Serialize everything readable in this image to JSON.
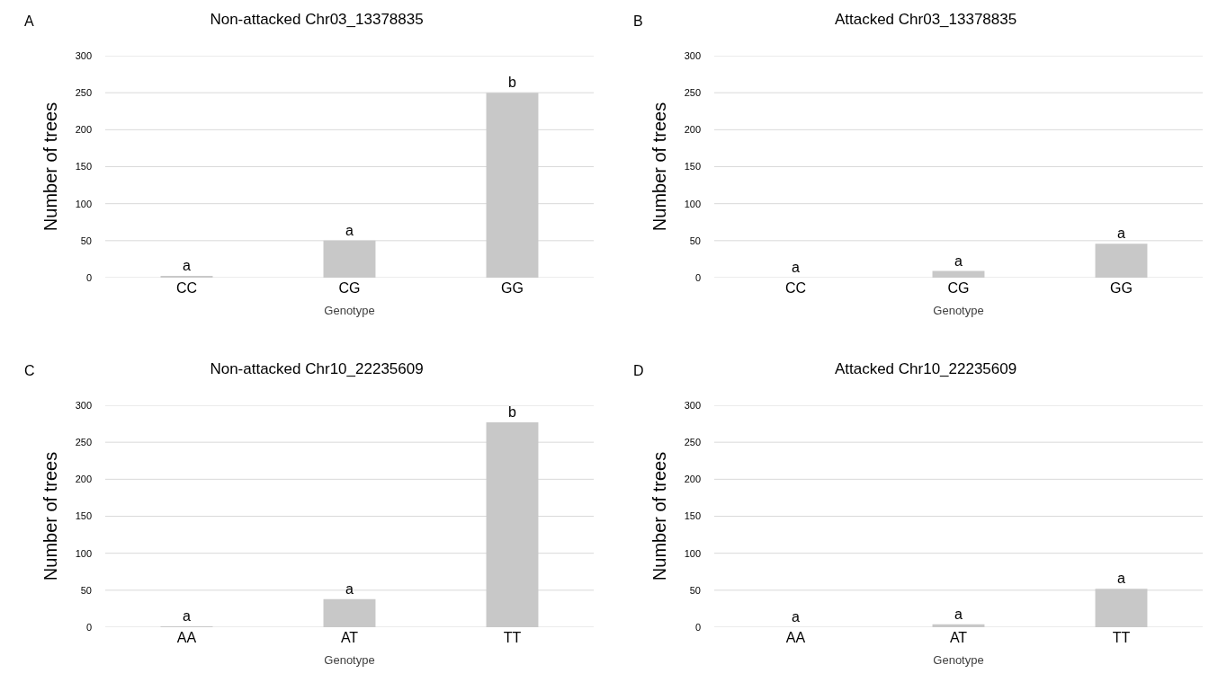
{
  "chart_data": [
    {
      "type": "bar",
      "title": "Non-attacked Chr03_13378835",
      "xlabel": "Genotype",
      "ylabel": "Number of trees",
      "annotations": [
        "A"
      ],
      "categories": [
        "CC",
        "CG",
        "GG"
      ],
      "values": [
        2,
        50,
        250
      ],
      "value_labels": [
        "a",
        "a",
        "b"
      ],
      "color": "#c8c8c8",
      "ylim": [
        0,
        300
      ],
      "yticks": [
        0,
        50,
        100,
        150,
        200,
        250,
        300
      ],
      "grid": "y"
    },
    {
      "type": "bar",
      "title": "Attacked Chr03_13378835",
      "xlabel": "Genotype",
      "ylabel": "Number of trees",
      "annotations": [
        "B"
      ],
      "categories": [
        "CC",
        "CG",
        "GG"
      ],
      "values": [
        0,
        9,
        46
      ],
      "value_labels": [
        "a",
        "a",
        "a"
      ],
      "color": "#c8c8c8",
      "ylim": [
        0,
        300
      ],
      "yticks": [
        0,
        50,
        100,
        150,
        200,
        250,
        300
      ],
      "grid": "y"
    },
    {
      "type": "bar",
      "title": "Non-attacked Chr10_22235609",
      "xlabel": "Genotype",
      "ylabel": "Number of trees",
      "annotations": [
        "C"
      ],
      "categories": [
        "AA",
        "AT",
        "TT"
      ],
      "values": [
        1,
        38,
        277
      ],
      "value_labels": [
        "a",
        "a",
        "b"
      ],
      "color": "#c8c8c8",
      "ylim": [
        0,
        300
      ],
      "yticks": [
        0,
        50,
        100,
        150,
        200,
        250,
        300
      ],
      "grid": "y"
    },
    {
      "type": "bar",
      "title": "Attacked Chr10_22235609",
      "xlabel": "Genotype",
      "ylabel": "Number of trees",
      "annotations": [
        "D"
      ],
      "categories": [
        "AA",
        "AT",
        "TT"
      ],
      "values": [
        0,
        4,
        52
      ],
      "value_labels": [
        "a",
        "a",
        "a"
      ],
      "color": "#c8c8c8",
      "ylim": [
        0,
        300
      ],
      "yticks": [
        0,
        50,
        100,
        150,
        200,
        250,
        300
      ],
      "grid": "y"
    }
  ]
}
